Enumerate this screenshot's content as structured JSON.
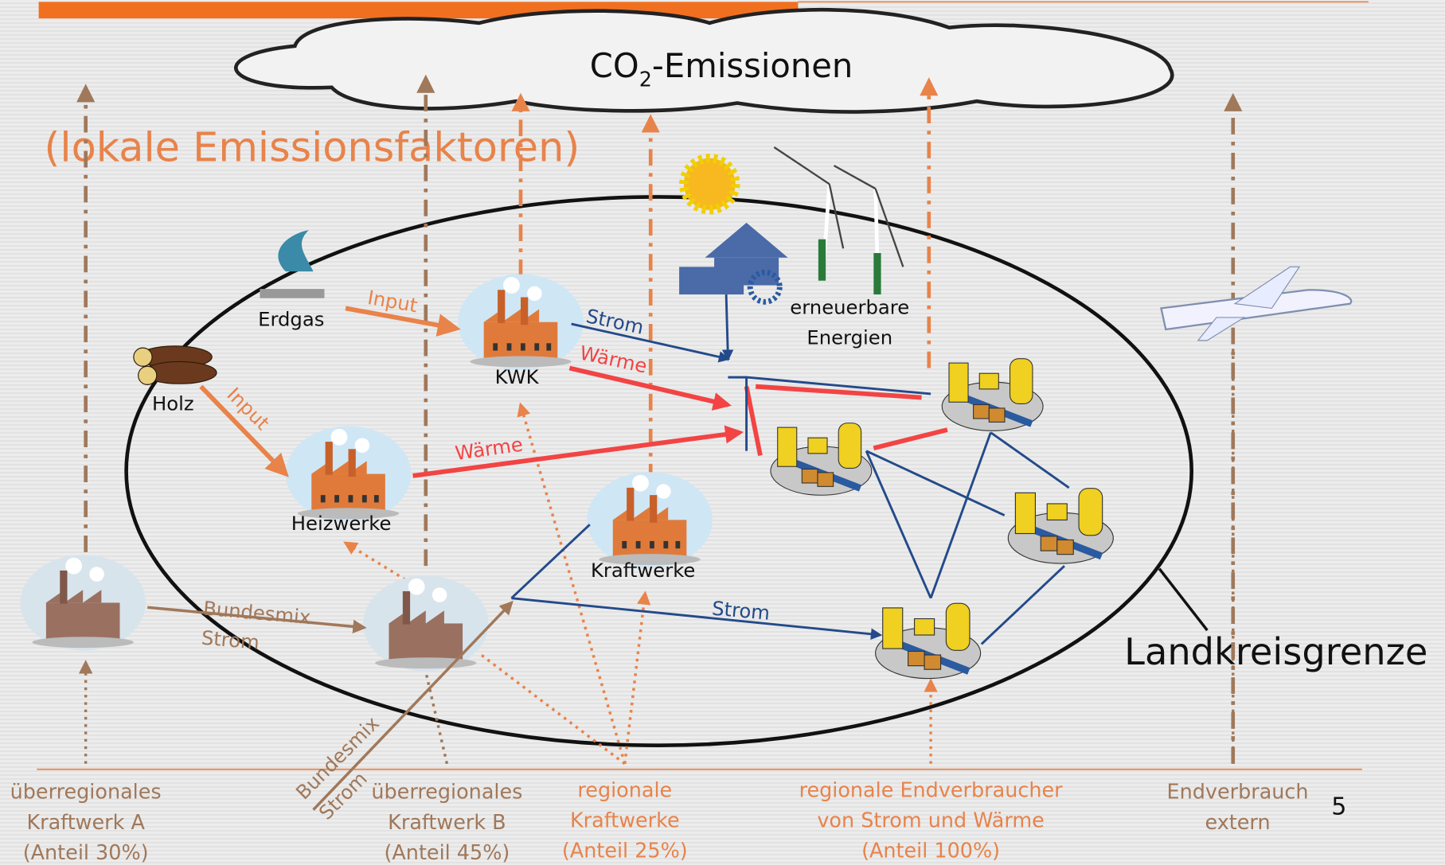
{
  "header": {
    "co2": {
      "main": "CO",
      "sub": "2",
      "rest": "-Emissionen"
    },
    "subtitle": "(lokale Emissionsfaktoren)"
  },
  "nodes": {
    "erdgas": "Erdgas",
    "holz": "Holz",
    "kwk": "KWK",
    "heizwerke": "Heizwerke",
    "kraftwerke": "Kraftwerke",
    "erneuerbare": [
      "erneuerbare",
      "Energien"
    ]
  },
  "edges": {
    "input_gas": "Input",
    "input_holz": "Input",
    "strom_kwk": "Strom",
    "waerme_kwk": "Wärme",
    "waerme_heiz": "Wärme",
    "strom_net": "Strom",
    "bundesmix_a": [
      "Bundesmix",
      "Strom"
    ],
    "bundesmix_b": [
      "Bundesmix",
      "Strom"
    ]
  },
  "boundary": "Landkreisgrenze",
  "footer": [
    [
      "überregionales",
      "Kraftwerk A",
      "(Anteil 30%)"
    ],
    [
      "überregionales",
      "Kraftwerk B",
      "(Anteil 45%)"
    ],
    [
      "regionale",
      "Kraftwerke",
      "(Anteil 25%)"
    ],
    [
      "regionale Endverbraucher",
      "von Strom und Wärme",
      "(Anteil 100%)"
    ],
    [
      "Endverbrauch",
      "extern"
    ]
  ],
  "page_number": "5"
}
